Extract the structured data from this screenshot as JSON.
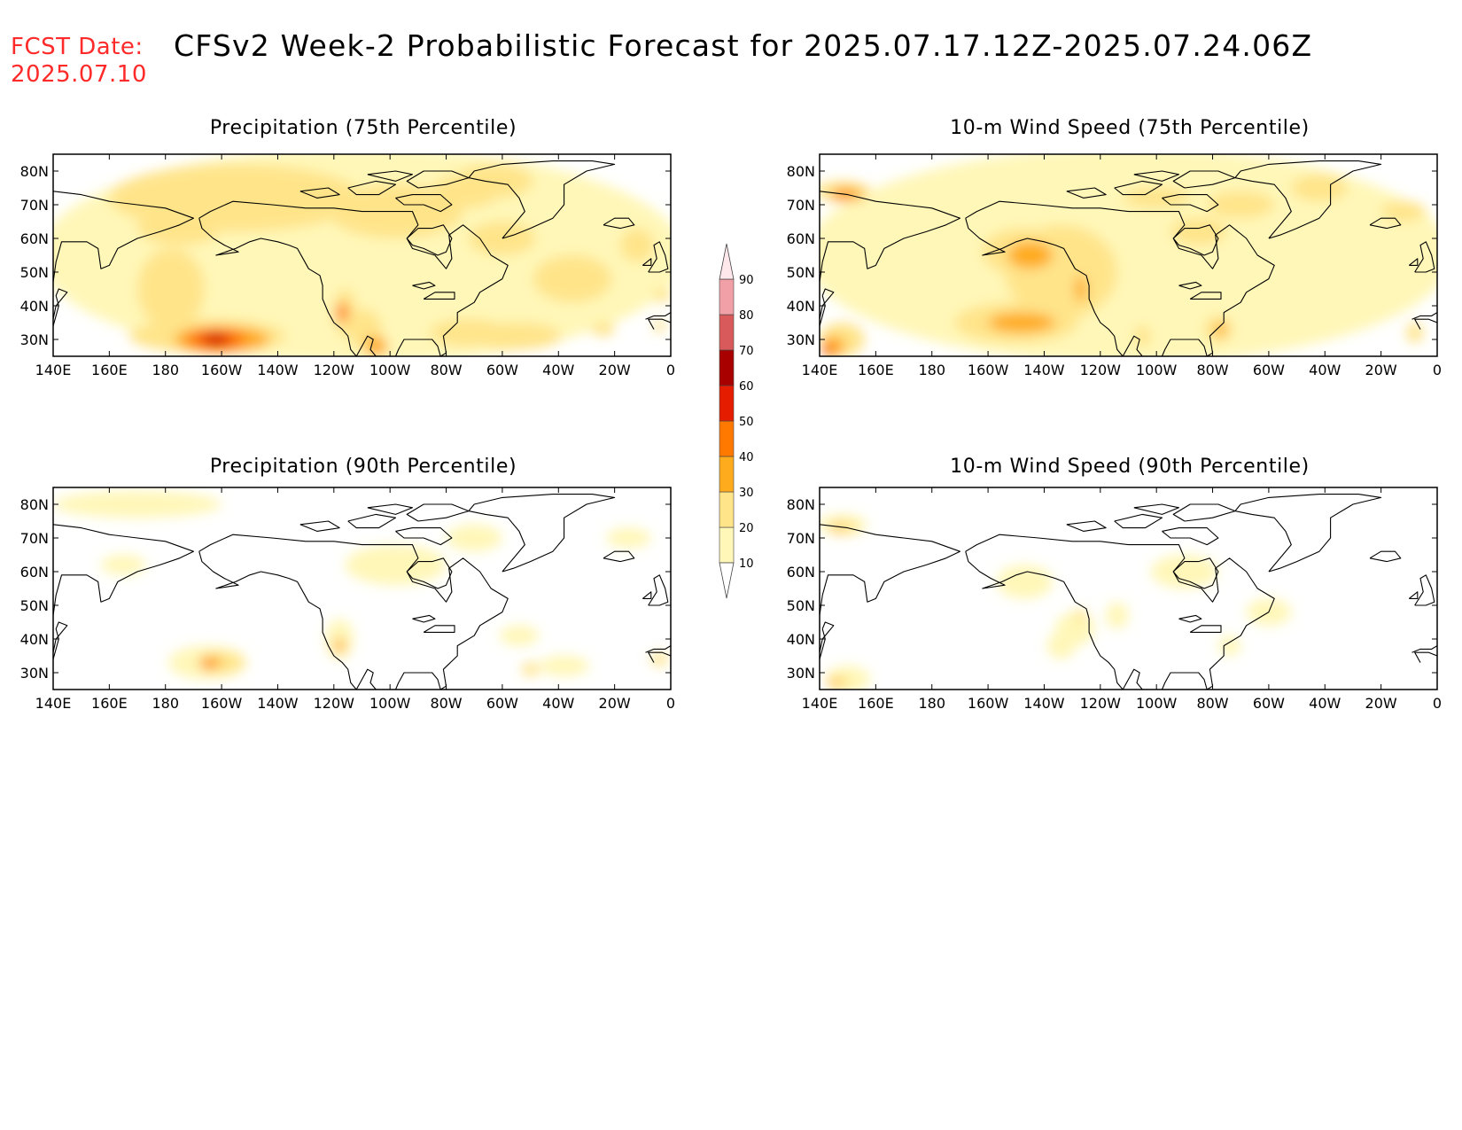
{
  "header": {
    "fcst_label": "FCST Date:",
    "fcst_date": "2025.07.10",
    "title": "CFSv2 Week-2 Probabilistic Forecast for 2025.07.17.12Z-2025.07.24.06Z"
  },
  "panels": [
    {
      "id": "precip75",
      "title": "Precipitation (75th Percentile)"
    },
    {
      "id": "wind75",
      "title": "10-m Wind Speed (75th Percentile)"
    },
    {
      "id": "precip90",
      "title": "Precipitation (90th Percentile)"
    },
    {
      "id": "wind90",
      "title": "10-m Wind Speed (90th Percentile)"
    }
  ],
  "axes": {
    "lon_labels": [
      "140E",
      "160E",
      "180",
      "160W",
      "140W",
      "120W",
      "100W",
      "80W",
      "60W",
      "40W",
      "20W",
      "0"
    ],
    "lat_labels": [
      "80N",
      "70N",
      "60N",
      "50N",
      "40N",
      "30N"
    ],
    "lon_range": [
      140,
      360
    ],
    "lat_range": [
      25,
      85
    ]
  },
  "colorbar": {
    "levels": [
      "10",
      "20",
      "30",
      "40",
      "50",
      "60",
      "70",
      "80",
      "90"
    ],
    "colors": [
      "#fff7b8",
      "#ffe48a",
      "#ffab1e",
      "#ff7800",
      "#e61c00",
      "#a80000",
      "#d85a5a",
      "#f2a0a8",
      "#ffe8ec"
    ]
  },
  "colors": {
    "land_outline": "#000000",
    "fcst_date": "#ff2a2a"
  }
}
